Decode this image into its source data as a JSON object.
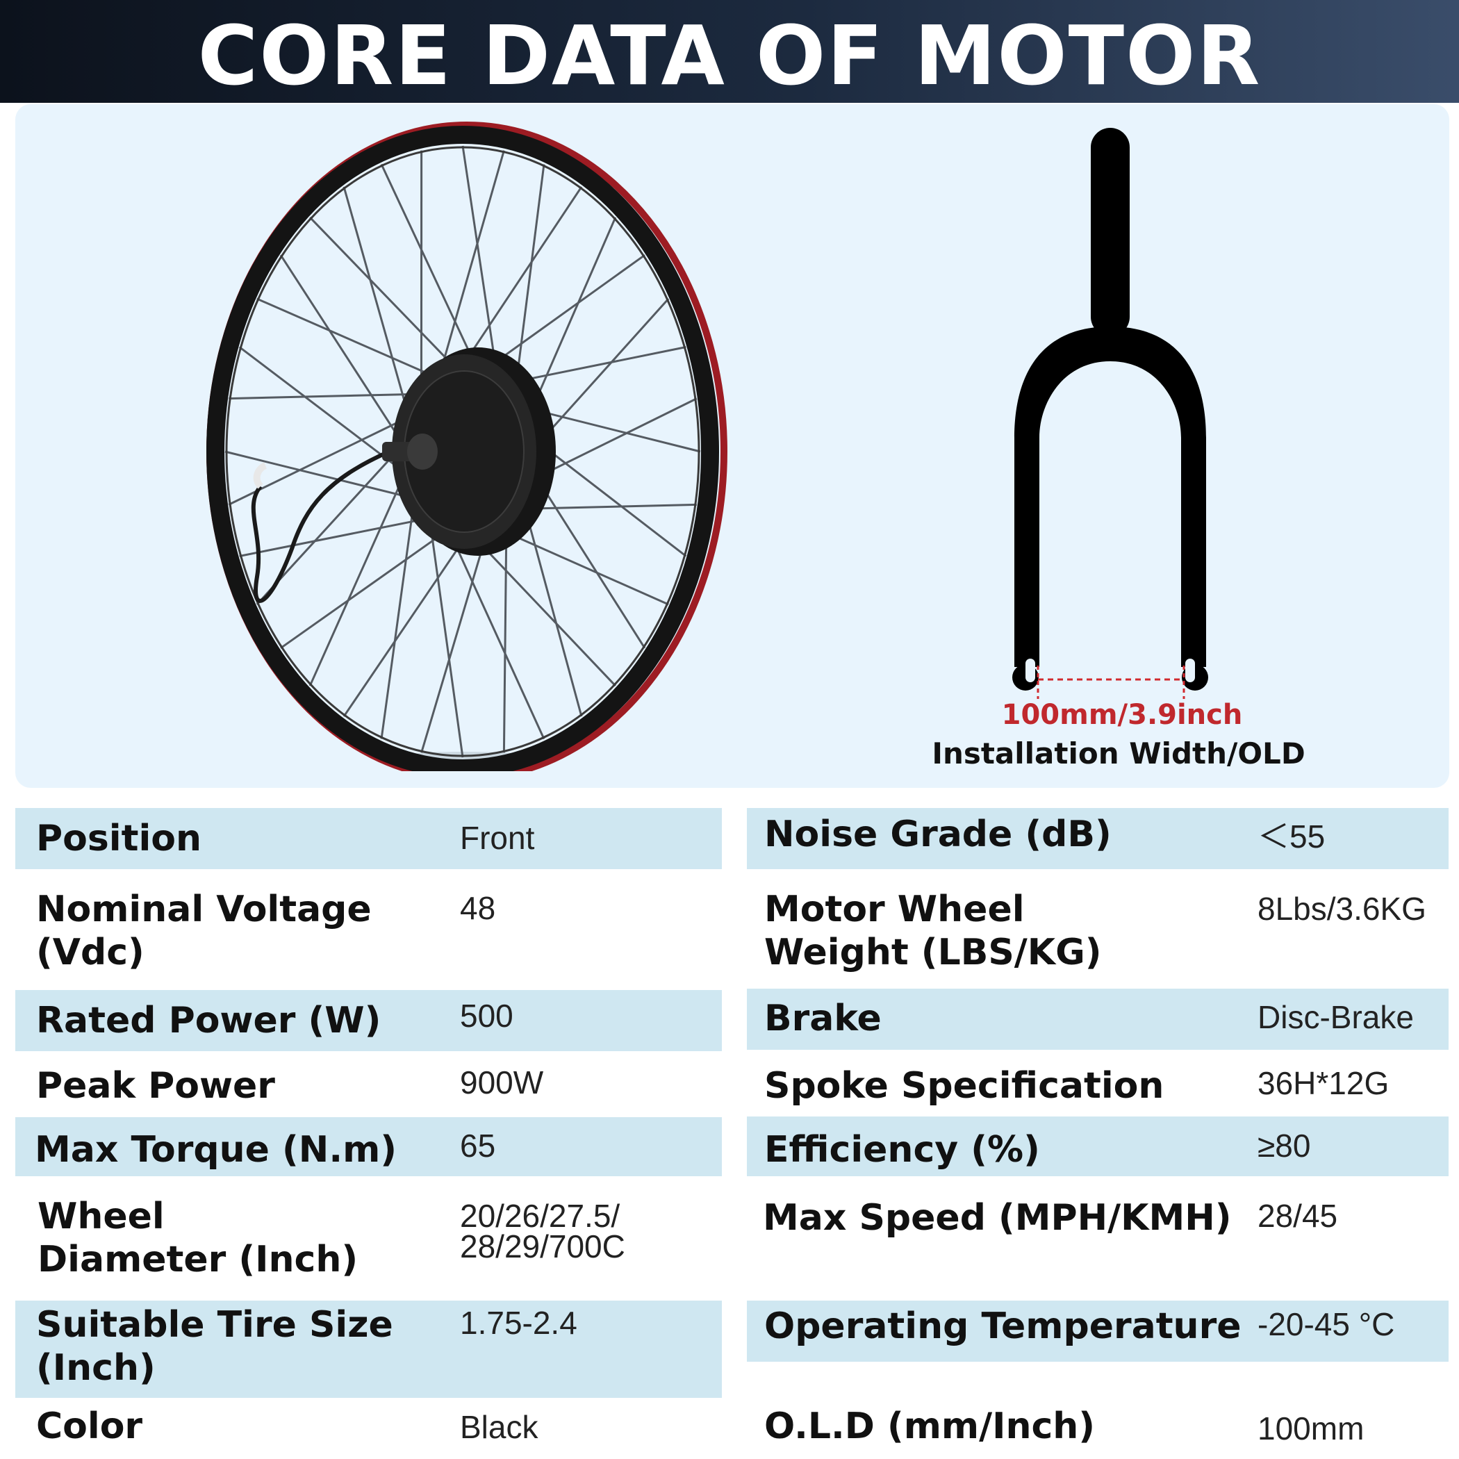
{
  "header": {
    "title": "CORE DATA OF MOTOR"
  },
  "fork": {
    "width_label": "100mm/3.9inch",
    "caption": "Installation Width/OLD"
  },
  "colors": {
    "header_dark": "#0c121c",
    "band": "#cfe7f1",
    "hero_bg": "#e8f4fd",
    "accent_red": "#c0282d"
  },
  "specs": {
    "left": [
      {
        "label": "Position",
        "value": "Front"
      },
      {
        "label": "Nominal Voltage (Vdc)",
        "value": "48"
      },
      {
        "label": "Rated Power (W)",
        "value": "500"
      },
      {
        "label": "Peak Power",
        "value": "900W"
      },
      {
        "label": "Max Torque (N.m)",
        "value": "65"
      },
      {
        "label": "Wheel Diameter (Inch)",
        "value": "20/26/27.5/ 28/29/700C"
      },
      {
        "label": "Suitable Tire Size (Inch)",
        "value": "1.75-2.4"
      },
      {
        "label": "Color",
        "value": "Black"
      }
    ],
    "right": [
      {
        "label": "Noise Grade (dB)",
        "value": "＜55"
      },
      {
        "label": "Motor Wheel Weight (LBS/KG)",
        "value": "8Lbs/3.6KG"
      },
      {
        "label": "Brake",
        "value": "Disc-Brake"
      },
      {
        "label": "Spoke Specification",
        "value": "36H*12G"
      },
      {
        "label": "Efficiency (%)",
        "value": "≥80"
      },
      {
        "label": "Max Speed (MPH/KMH)",
        "value": "28/45"
      },
      {
        "label": "Operating Temperature",
        "value": "-20-45 °C"
      },
      {
        "label": "O.L.D (mm/Inch)",
        "value": "100mm"
      }
    ]
  }
}
